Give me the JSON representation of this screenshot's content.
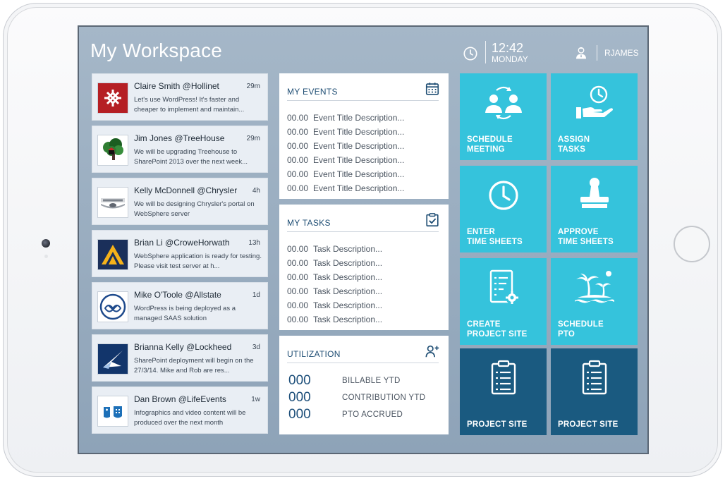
{
  "app": {
    "title": "My Workspace",
    "time": "12:42",
    "day": "MONDAY",
    "user": "RJAMES"
  },
  "feed": [
    {
      "name": "Claire Smith @Hollinet",
      "time": "29m",
      "message": "Let's use WordPress!  It's faster and cheaper to implement and maintain...",
      "icon": "hollinet-logo"
    },
    {
      "name": "Jim Jones @TreeHouse",
      "time": "29m",
      "message": "We will be upgrading Treehouse to SharePoint 2013 over the next week...",
      "icon": "treehouse-logo"
    },
    {
      "name": "Kelly McDonnell @Chrysler",
      "time": "4h",
      "message": "We will be designing Chrysler's portal on WebSphere server",
      "icon": "chrysler-logo"
    },
    {
      "name": "Brian Li @CroweHorwath",
      "time": "13h",
      "message": "WebSphere application is ready for testing.  Please visit test server at h...",
      "icon": "crowehorwath-logo"
    },
    {
      "name": "Mike O'Toole @Allstate",
      "time": "1d",
      "message": "WordPress is being deployed as a managed SAAS solution",
      "icon": "allstate-logo"
    },
    {
      "name": "Brianna Kelly @Lockheed",
      "time": "3d",
      "message": "SharePoint deployment will begin on the 27/3/14.  Mike and Rob are res...",
      "icon": "lockheed-logo"
    },
    {
      "name": "Dan Brown @LifeEvents",
      "time": "1w",
      "message": "Infographics and video content will be produced over the next month",
      "icon": "lifeevents-logo"
    }
  ],
  "events": {
    "title": "MY EVENTS",
    "items": [
      {
        "num": "00.00",
        "text": "Event Title Description..."
      },
      {
        "num": "00.00",
        "text": "Event Title Description..."
      },
      {
        "num": "00.00",
        "text": "Event Title Description..."
      },
      {
        "num": "00.00",
        "text": "Event Title Description..."
      },
      {
        "num": "00.00",
        "text": "Event Title Description..."
      },
      {
        "num": "00.00",
        "text": "Event Title Description..."
      }
    ]
  },
  "tasks": {
    "title": "MY TASKS",
    "items": [
      {
        "num": "00.00",
        "text": "Task Description..."
      },
      {
        "num": "00.00",
        "text": "Task Description..."
      },
      {
        "num": "00.00",
        "text": "Task Description..."
      },
      {
        "num": "00.00",
        "text": "Task Description..."
      },
      {
        "num": "00.00",
        "text": "Task Description..."
      },
      {
        "num": "00.00",
        "text": "Task Description..."
      }
    ]
  },
  "utilization": {
    "title": "UTILIZATION",
    "rows": [
      {
        "value": "000",
        "label": "BILLABLE YTD"
      },
      {
        "value": "000",
        "label": "CONTRIBUTION YTD"
      },
      {
        "value": "000",
        "label": "PTO ACCRUED"
      }
    ]
  },
  "tiles": [
    {
      "label": "SCHEDULE\nMEETING",
      "icon": "meeting-icon"
    },
    {
      "label": "ASSIGN\nTASKS",
      "icon": "assign-tasks-icon"
    },
    {
      "label": "ENTER\nTIME SHEETS",
      "icon": "clock-icon"
    },
    {
      "label": "APPROVE\nTIME SHEETS",
      "icon": "stamp-icon"
    },
    {
      "label": "CREATE\nPROJECT SITE",
      "icon": "checklist-gear-icon"
    },
    {
      "label": "SCHEDULE\nPTO",
      "icon": "island-icon"
    },
    {
      "label": "PROJECT SITE",
      "icon": "clipboard-icon"
    },
    {
      "label": "PROJECT SITE",
      "icon": "clipboard-icon"
    }
  ],
  "colors": {
    "tile": "#35c3dc",
    "tile_dark": "#1a5a80",
    "accent_text": "#1f4e74"
  }
}
